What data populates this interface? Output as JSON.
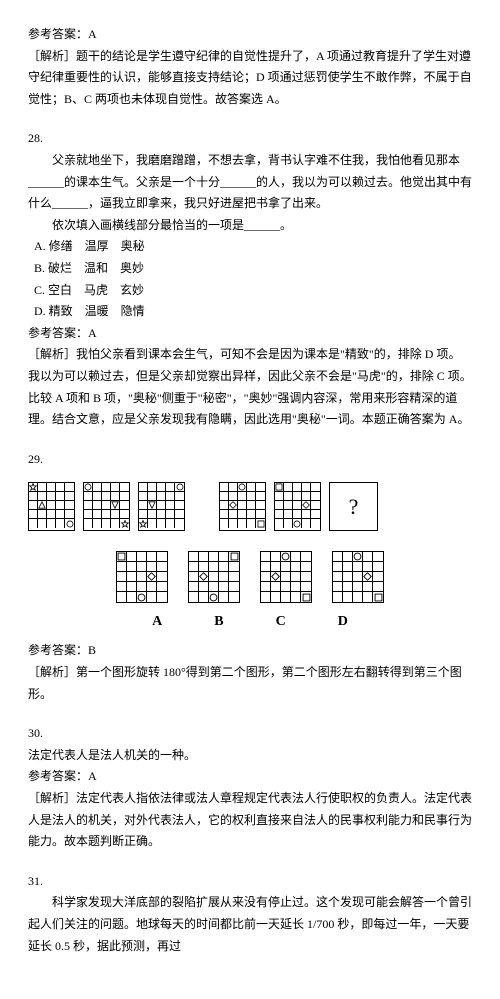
{
  "q27": {
    "answer_label": "参考答案：",
    "answer": "A",
    "analysis": "［解析］题干的结论是学生遵守纪律的自觉性提升了，A 项通过教育提升了学生对遵守纪律重要性的认识，能够直接支持结论；D 项通过惩罚使学生不敢作弊，不属于自觉性；B、C 两项也未体现自觉性。故答案选 A。"
  },
  "q28": {
    "num": "28.",
    "para1": "　　父亲就地坐下，我磨磨蹭蹭，不想去拿，背书认字难不住我，我怕他看见那本______的课本生气。父亲是一个十分______的人，我以为可以赖过去。他觉出其中有什么______，逼我立即拿来，我只好进屋把书拿了出来。",
    "para2": "　　依次填入画横线部分最恰当的一项是______。",
    "optA": "A. 修缮　温厚　奥秘",
    "optB": "B. 破烂　温和　奥妙",
    "optC": "C. 空白　马虎　玄妙",
    "optD": "D. 精致　温暖　隐情",
    "answer_label": "参考答案：",
    "answer": "A",
    "analysis": "［解析］我怕父亲看到课本会生气，可知不会是因为课本是\"精致\"的，排除 D 项。我以为可以赖过去，但是父亲却觉察出异样，因此父亲不会是\"马虎\"的，排除 C 项。比较 A 项和 B 项，\"奥秘\"侧重于\"秘密\"，\"奥妙\"强调内容深，常用来形容精深的道理。结合文意，应是父亲发现我有隐瞒，因此选用\"奥秘\"一词。本题正确答案为 A。"
  },
  "q29": {
    "num": "29.",
    "letters": [
      "A",
      "B",
      "C",
      "D"
    ],
    "qmark": "?",
    "answer_label": "参考答案：",
    "answer": "B",
    "analysis": "［解析］第一个图形旋转 180°得到第二个图形，第二个图形左右翻转得到第三个图形。",
    "row1_grids": [
      [
        {
          "r": 0,
          "c": 0,
          "shape": "star"
        },
        {
          "r": 2,
          "c": 1,
          "shape": "triangle"
        },
        {
          "r": 4,
          "c": 4,
          "shape": "circle"
        }
      ],
      [
        {
          "r": 0,
          "c": 0,
          "shape": "circle"
        },
        {
          "r": 2,
          "c": 3,
          "shape": "triangle-down"
        },
        {
          "r": 4,
          "c": 4,
          "shape": "star"
        }
      ],
      [
        {
          "r": 0,
          "c": 4,
          "shape": "circle"
        },
        {
          "r": 2,
          "c": 1,
          "shape": "triangle-down"
        },
        {
          "r": 4,
          "c": 0,
          "shape": "star"
        }
      ],
      [
        {
          "r": 0,
          "c": 2,
          "shape": "circle"
        },
        {
          "r": 2,
          "c": 1,
          "shape": "diamond"
        },
        {
          "r": 4,
          "c": 4,
          "shape": "square"
        }
      ],
      [
        {
          "r": 0,
          "c": 0,
          "shape": "square"
        },
        {
          "r": 2,
          "c": 3,
          "shape": "diamond"
        },
        {
          "r": 4,
          "c": 2,
          "shape": "circle"
        }
      ]
    ],
    "row2_grids": [
      [
        {
          "r": 0,
          "c": 0,
          "shape": "square"
        },
        {
          "r": 2,
          "c": 3,
          "shape": "diamond"
        },
        {
          "r": 4,
          "c": 2,
          "shape": "circle"
        }
      ],
      [
        {
          "r": 0,
          "c": 4,
          "shape": "square"
        },
        {
          "r": 2,
          "c": 1,
          "shape": "diamond"
        },
        {
          "r": 4,
          "c": 2,
          "shape": "circle"
        }
      ],
      [
        {
          "r": 0,
          "c": 2,
          "shape": "circle"
        },
        {
          "r": 2,
          "c": 1,
          "shape": "diamond"
        },
        {
          "r": 4,
          "c": 4,
          "shape": "square"
        }
      ],
      [
        {
          "r": 0,
          "c": 2,
          "shape": "circle"
        },
        {
          "r": 2,
          "c": 3,
          "shape": "diamond"
        },
        {
          "r": 4,
          "c": 4,
          "shape": "square"
        }
      ]
    ]
  },
  "q30": {
    "num": "30.",
    "stem": "法定代表人是法人机关的一种。",
    "answer_label": "参考答案：",
    "answer": "A",
    "analysis": "［解析］法定代表人指依法律或法人章程规定代表法人行使职权的负责人。法定代表人是法人的机关，对外代表法人，它的权利直接来自法人的民事权利能力和民事行为能力。故本题判断正确。"
  },
  "q31": {
    "num": "31.",
    "stem": "　　科学家发现大洋底部的裂陷扩展从来没有停止过。这个发现可能会解答一个曾引起人们关注的问题。地球每天的时间都比前一天延长 1/700 秒，即每过一年，一天要延长 0.5 秒，据此预测，再过"
  }
}
